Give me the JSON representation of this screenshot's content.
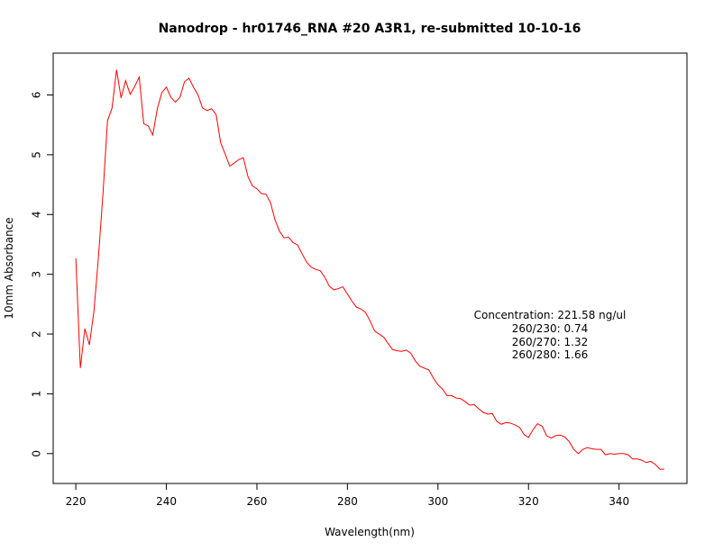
{
  "chart_data": {
    "type": "line",
    "title": "Nanodrop - hr01746_RNA #20 A3R1, re-submitted 10-10-16",
    "xlabel": "Wavelength(nm)",
    "ylabel": "10mm Absorbance",
    "xlim": [
      215,
      355
    ],
    "ylim": [
      -0.5,
      6.7
    ],
    "xticks": [
      220,
      240,
      260,
      280,
      300,
      320,
      340
    ],
    "yticks": [
      0,
      1,
      2,
      3,
      4,
      5,
      6
    ],
    "grid": false,
    "legend": "none",
    "series": [
      {
        "color": "#ff0000",
        "x": [
          220,
          221,
          222,
          223,
          224,
          225,
          226,
          227,
          228,
          229,
          230,
          231,
          232,
          233,
          234,
          235,
          236,
          237,
          238,
          239,
          240,
          241,
          242,
          243,
          244,
          245,
          246,
          247,
          248,
          249,
          250,
          251,
          252,
          253,
          254,
          255,
          256,
          257,
          258,
          259,
          260,
          261,
          262,
          263,
          264,
          265,
          266,
          267,
          268,
          269,
          270,
          271,
          272,
          273,
          274,
          275,
          276,
          277,
          278,
          279,
          280,
          281,
          282,
          283,
          284,
          285,
          286,
          287,
          288,
          289,
          290,
          291,
          292,
          293,
          294,
          295,
          296,
          297,
          298,
          299,
          300,
          301,
          302,
          303,
          304,
          305,
          306,
          307,
          308,
          309,
          310,
          311,
          312,
          313,
          314,
          315,
          316,
          317,
          318,
          319,
          320,
          321,
          322,
          323,
          324,
          325,
          326,
          327,
          328,
          329,
          330,
          331,
          332,
          333,
          334,
          335,
          336,
          337,
          338,
          339,
          340,
          341,
          342,
          343,
          344,
          345,
          346,
          347,
          348,
          349,
          350
        ],
        "y": [
          3.27,
          1.43,
          2.09,
          1.82,
          2.38,
          3.29,
          4.35,
          5.57,
          5.78,
          6.42,
          5.95,
          6.24,
          6.01,
          6.14,
          6.3,
          5.52,
          5.48,
          5.33,
          5.77,
          6.04,
          6.13,
          5.96,
          5.88,
          5.96,
          6.22,
          6.28,
          6.13,
          6.0,
          5.78,
          5.74,
          5.77,
          5.67,
          5.2,
          5.01,
          4.81,
          4.86,
          4.92,
          4.95,
          4.64,
          4.48,
          4.43,
          4.35,
          4.34,
          4.2,
          3.91,
          3.72,
          3.61,
          3.62,
          3.53,
          3.49,
          3.34,
          3.2,
          3.12,
          3.08,
          3.06,
          2.95,
          2.8,
          2.74,
          2.76,
          2.79,
          2.67,
          2.55,
          2.45,
          2.42,
          2.36,
          2.22,
          2.05,
          2.0,
          1.95,
          1.84,
          1.74,
          1.72,
          1.71,
          1.73,
          1.68,
          1.55,
          1.46,
          1.43,
          1.4,
          1.26,
          1.15,
          1.08,
          0.97,
          0.97,
          0.93,
          0.92,
          0.87,
          0.81,
          0.82,
          0.75,
          0.69,
          0.66,
          0.67,
          0.54,
          0.49,
          0.52,
          0.51,
          0.48,
          0.44,
          0.32,
          0.27,
          0.4,
          0.5,
          0.46,
          0.3,
          0.26,
          0.3,
          0.31,
          0.28,
          0.2,
          0.07,
          0.0,
          0.07,
          0.1,
          0.08,
          0.07,
          0.07,
          -0.02,
          0.0,
          -0.01,
          0.0,
          0.0,
          -0.02,
          -0.09,
          -0.09,
          -0.11,
          -0.15,
          -0.13,
          -0.18,
          -0.26,
          -0.26
        ]
      }
    ],
    "annotations": [
      "Concentration: 221.58 ng/ul",
      "260/230: 0.74",
      "260/270: 1.32",
      "260/280: 1.66"
    ]
  }
}
